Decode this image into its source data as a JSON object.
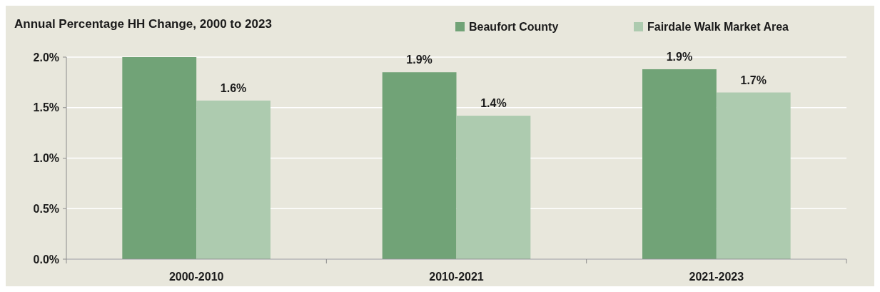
{
  "chart_data": {
    "type": "bar",
    "title": "Annual Percentage HH Change, 2000 to 2023",
    "categories": [
      "2000-2010",
      "2010-2021",
      "2021-2023"
    ],
    "series": [
      {
        "name": "Beaufort County",
        "color": "#71a377",
        "values": [
          2.0,
          1.85,
          1.88
        ],
        "value_labels": [
          null,
          "1.9%",
          "1.9%"
        ]
      },
      {
        "name": "Fairdale Walk Market Area",
        "color": "#adcbaf",
        "values": [
          1.57,
          1.42,
          1.65
        ],
        "value_labels": [
          "1.6%",
          "1.4%",
          "1.7%"
        ]
      }
    ],
    "ylim": [
      0,
      2.0
    ],
    "yticks": [
      {
        "value": 0,
        "label": "0.0%"
      },
      {
        "value": 0.5,
        "label": "0.5%"
      },
      {
        "value": 1.0,
        "label": "1.0%"
      },
      {
        "value": 1.5,
        "label": "1.5%"
      },
      {
        "value": 2.0,
        "label": "2.0%"
      }
    ],
    "grid": "y",
    "legend": "top"
  }
}
